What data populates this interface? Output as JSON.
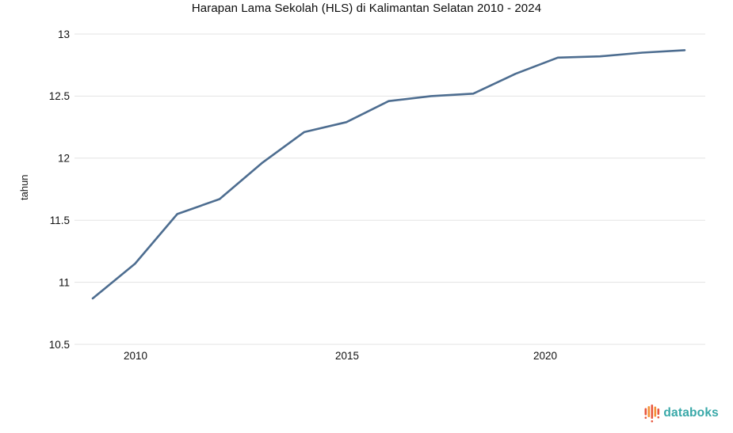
{
  "chart_data": {
    "type": "line",
    "title": "Harapan Lama Sekolah (HLS) di Kalimantan Selatan 2010 - 2024",
    "ylabel": "tahun",
    "xlabel": "",
    "x": [
      2010,
      2011,
      2012,
      2013,
      2014,
      2015,
      2016,
      2017,
      2018,
      2019,
      2020,
      2021,
      2022,
      2023,
      2024
    ],
    "values": [
      10.87,
      11.15,
      11.55,
      11.67,
      11.96,
      12.21,
      12.29,
      12.46,
      12.5,
      12.52,
      12.68,
      12.81,
      12.82,
      12.85,
      12.87
    ],
    "ylim": [
      10.5,
      13
    ],
    "yticks": [
      13,
      12.5,
      12,
      11.5,
      11,
      10.5
    ],
    "xticks": [
      2010,
      2015,
      2020
    ],
    "grid": true,
    "legend": false
  },
  "branding": {
    "logo_text": "databoks"
  },
  "colors": {
    "line": "#4d6d90",
    "grid": "#e3e3e3",
    "axis_text": "#111111",
    "title_text": "#0d0d0d",
    "brand_teal": "#38a8a8",
    "brand_red": "#e8573f",
    "brand_orange": "#f49136",
    "background": "#ffffff"
  }
}
